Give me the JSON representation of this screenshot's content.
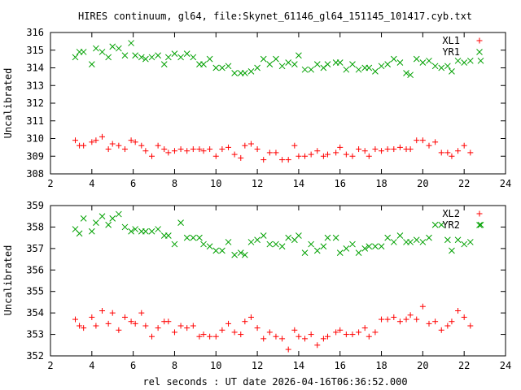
{
  "chart_data": [
    {
      "type": "scatter",
      "title": "HIRES continuum, gl64, file:Skynet_61146_gl64_151145_101417.cyb.txt",
      "xlabel": "",
      "ylabel": "Uncalibrated",
      "xlim": [
        2,
        24
      ],
      "ylim": [
        308,
        316
      ],
      "xticks": [
        "2",
        "4",
        "6",
        "8",
        "10",
        "12",
        "14",
        "16",
        "18",
        "20",
        "22",
        "24"
      ],
      "yticks": [
        "308",
        "309",
        "310",
        "311",
        "312",
        "313",
        "314",
        "315",
        "316"
      ],
      "legend_position": "top-right",
      "series": [
        {
          "name": "XL1",
          "color": "#ff0000",
          "marker": "plus",
          "x": [
            3.2,
            3.4,
            3.6,
            4.0,
            4.2,
            4.5,
            4.8,
            5.0,
            5.3,
            5.6,
            5.9,
            6.1,
            6.4,
            6.6,
            6.9,
            7.2,
            7.5,
            7.7,
            8.0,
            8.3,
            8.6,
            8.9,
            9.2,
            9.4,
            9.7,
            10.0,
            10.3,
            10.6,
            10.9,
            11.2,
            11.4,
            11.7,
            12.0,
            12.3,
            12.6,
            12.9,
            13.2,
            13.5,
            13.8,
            14.0,
            14.3,
            14.6,
            14.9,
            15.2,
            15.4,
            15.8,
            16.0,
            16.3,
            16.6,
            16.9,
            17.2,
            17.4,
            17.7,
            18.0,
            18.3,
            18.6,
            18.9,
            19.2,
            19.4,
            19.7,
            20.0,
            20.3,
            20.6,
            20.9,
            21.2,
            21.4,
            21.7,
            22.0,
            22.3
          ],
          "y": [
            309.9,
            309.6,
            309.6,
            309.8,
            309.9,
            310.1,
            309.4,
            309.7,
            309.6,
            309.4,
            309.9,
            309.8,
            309.6,
            309.3,
            309.0,
            309.6,
            309.4,
            309.2,
            309.3,
            309.4,
            309.3,
            309.4,
            309.4,
            309.3,
            309.4,
            309.0,
            309.4,
            309.5,
            309.1,
            308.9,
            309.6,
            309.7,
            309.4,
            308.8,
            309.2,
            309.2,
            308.8,
            308.8,
            309.6,
            309.0,
            309.0,
            309.1,
            309.3,
            309.0,
            309.1,
            309.2,
            309.5,
            309.1,
            309.0,
            309.4,
            309.3,
            309.0,
            309.4,
            309.3,
            309.4,
            309.4,
            309.5,
            309.4,
            309.4,
            309.9,
            309.9,
            309.6,
            309.8,
            309.2,
            309.2,
            309.0,
            309.3,
            309.6,
            309.2
          ],
          "color2": ""
        },
        {
          "name": "YR1",
          "color": "#00a000",
          "marker": "x",
          "x": [
            3.2,
            3.4,
            3.6,
            4.0,
            4.2,
            4.5,
            4.8,
            5.0,
            5.3,
            5.6,
            5.9,
            6.1,
            6.4,
            6.6,
            6.9,
            7.2,
            7.5,
            7.7,
            8.0,
            8.3,
            8.6,
            8.9,
            9.2,
            9.4,
            9.7,
            10.0,
            10.3,
            10.6,
            10.9,
            11.2,
            11.4,
            11.7,
            12.0,
            12.3,
            12.6,
            12.9,
            13.2,
            13.5,
            13.8,
            14.0,
            14.3,
            14.6,
            14.9,
            15.2,
            15.4,
            15.8,
            16.0,
            16.3,
            16.6,
            16.9,
            17.2,
            17.4,
            17.7,
            18.0,
            18.3,
            18.6,
            18.9,
            19.2,
            19.4,
            19.7,
            20.0,
            20.3,
            20.6,
            20.9,
            21.2,
            21.4,
            21.7,
            22.0,
            22.3,
            22.8
          ],
          "y": [
            314.6,
            314.9,
            314.9,
            314.2,
            315.1,
            314.9,
            314.6,
            315.2,
            315.1,
            314.7,
            315.4,
            314.7,
            314.6,
            314.5,
            314.6,
            314.7,
            314.2,
            314.6,
            314.8,
            314.6,
            314.8,
            314.6,
            314.2,
            314.2,
            314.5,
            314.0,
            314.0,
            314.1,
            313.7,
            313.7,
            313.7,
            313.8,
            314.0,
            314.5,
            314.2,
            314.5,
            314.1,
            314.3,
            314.2,
            314.7,
            313.9,
            313.9,
            314.2,
            314.0,
            314.2,
            314.3,
            314.3,
            313.9,
            314.2,
            313.9,
            314.0,
            314.0,
            313.8,
            314.1,
            314.2,
            314.5,
            314.3,
            313.7,
            313.6,
            314.5,
            314.3,
            314.4,
            314.1,
            314.0,
            314.1,
            313.8,
            314.4,
            314.3,
            314.4,
            314.4
          ],
          "color2": ""
        }
      ]
    },
    {
      "type": "scatter",
      "title": "",
      "xlabel": "rel seconds : UT date 2026-04-16T06:36:52.000",
      "ylabel": "Uncalibrated",
      "xlim": [
        2,
        24
      ],
      "ylim": [
        352,
        359
      ],
      "xticks": [
        "2",
        "4",
        "6",
        "8",
        "10",
        "12",
        "14",
        "16",
        "18",
        "20",
        "22",
        "24"
      ],
      "yticks": [
        "352",
        "353",
        "354",
        "355",
        "356",
        "357",
        "358",
        "359"
      ],
      "legend_position": "top-right",
      "series": [
        {
          "name": "XL2",
          "color": "#ff0000",
          "marker": "plus",
          "x": [
            3.2,
            3.4,
            3.6,
            4.0,
            4.2,
            4.5,
            4.8,
            5.0,
            5.3,
            5.6,
            5.9,
            6.1,
            6.4,
            6.6,
            6.9,
            7.2,
            7.5,
            7.7,
            8.0,
            8.3,
            8.6,
            8.9,
            9.2,
            9.4,
            9.7,
            10.0,
            10.3,
            10.6,
            10.9,
            11.2,
            11.4,
            11.7,
            12.0,
            12.3,
            12.6,
            12.9,
            13.2,
            13.5,
            13.8,
            14.0,
            14.3,
            14.6,
            14.9,
            15.2,
            15.4,
            15.8,
            16.0,
            16.3,
            16.6,
            16.9,
            17.2,
            17.4,
            17.7,
            18.0,
            18.3,
            18.6,
            18.9,
            19.2,
            19.4,
            19.7,
            20.0,
            20.3,
            20.6,
            20.9,
            21.2,
            21.4,
            21.7,
            22.0,
            22.3
          ],
          "y": [
            353.7,
            353.4,
            353.3,
            353.8,
            353.4,
            354.1,
            353.5,
            354.0,
            353.2,
            353.8,
            353.6,
            353.5,
            354.0,
            353.4,
            352.9,
            353.3,
            353.6,
            353.6,
            353.1,
            353.4,
            353.3,
            353.4,
            352.9,
            353.0,
            352.9,
            352.9,
            353.2,
            353.5,
            353.1,
            353.0,
            353.6,
            353.8,
            353.3,
            352.8,
            353.1,
            352.9,
            352.8,
            352.3,
            353.2,
            352.9,
            352.8,
            353.0,
            352.5,
            352.8,
            352.9,
            353.1,
            353.2,
            353.0,
            353.0,
            353.1,
            353.3,
            352.9,
            353.1,
            353.7,
            353.7,
            353.8,
            353.6,
            353.7,
            353.9,
            353.7,
            354.3,
            353.5,
            353.6,
            353.2,
            353.4,
            353.6,
            354.1,
            353.8,
            353.4
          ],
          "color2": ""
        },
        {
          "name": "YR2",
          "color": "#00a000",
          "marker": "x",
          "x": [
            3.2,
            3.4,
            3.6,
            4.0,
            4.2,
            4.5,
            4.8,
            5.0,
            5.3,
            5.6,
            5.9,
            6.1,
            6.4,
            6.6,
            6.9,
            7.2,
            7.5,
            7.7,
            8.0,
            8.3,
            8.6,
            8.9,
            9.2,
            9.4,
            9.7,
            10.0,
            10.3,
            10.6,
            10.9,
            11.2,
            11.4,
            11.7,
            12.0,
            12.3,
            12.6,
            12.9,
            13.2,
            13.5,
            13.8,
            14.0,
            14.3,
            14.6,
            14.9,
            15.2,
            15.4,
            15.8,
            16.0,
            16.3,
            16.6,
            16.9,
            17.2,
            17.4,
            17.7,
            18.0,
            18.3,
            18.6,
            18.9,
            19.2,
            19.4,
            19.7,
            20.0,
            20.3,
            20.6,
            20.9,
            21.2,
            21.4,
            21.7,
            22.0,
            22.3,
            22.8
          ],
          "y": [
            357.9,
            357.7,
            358.4,
            357.8,
            358.2,
            358.5,
            358.1,
            358.4,
            358.6,
            358.0,
            357.8,
            357.9,
            357.8,
            357.8,
            357.8,
            357.9,
            357.6,
            357.6,
            357.2,
            358.2,
            357.5,
            357.5,
            357.5,
            357.2,
            357.1,
            356.9,
            356.9,
            357.3,
            356.7,
            356.8,
            356.7,
            357.3,
            357.4,
            357.6,
            357.2,
            357.2,
            357.1,
            357.5,
            357.4,
            357.6,
            356.8,
            357.2,
            356.9,
            357.1,
            357.5,
            357.5,
            356.8,
            357.0,
            357.2,
            356.8,
            357.0,
            357.1,
            357.1,
            357.1,
            357.5,
            357.3,
            357.6,
            357.3,
            357.3,
            357.4,
            357.3,
            357.5,
            358.1,
            358.1,
            357.4,
            356.9,
            357.4,
            357.2,
            357.3,
            358.1
          ],
          "color2": ""
        }
      ]
    }
  ]
}
